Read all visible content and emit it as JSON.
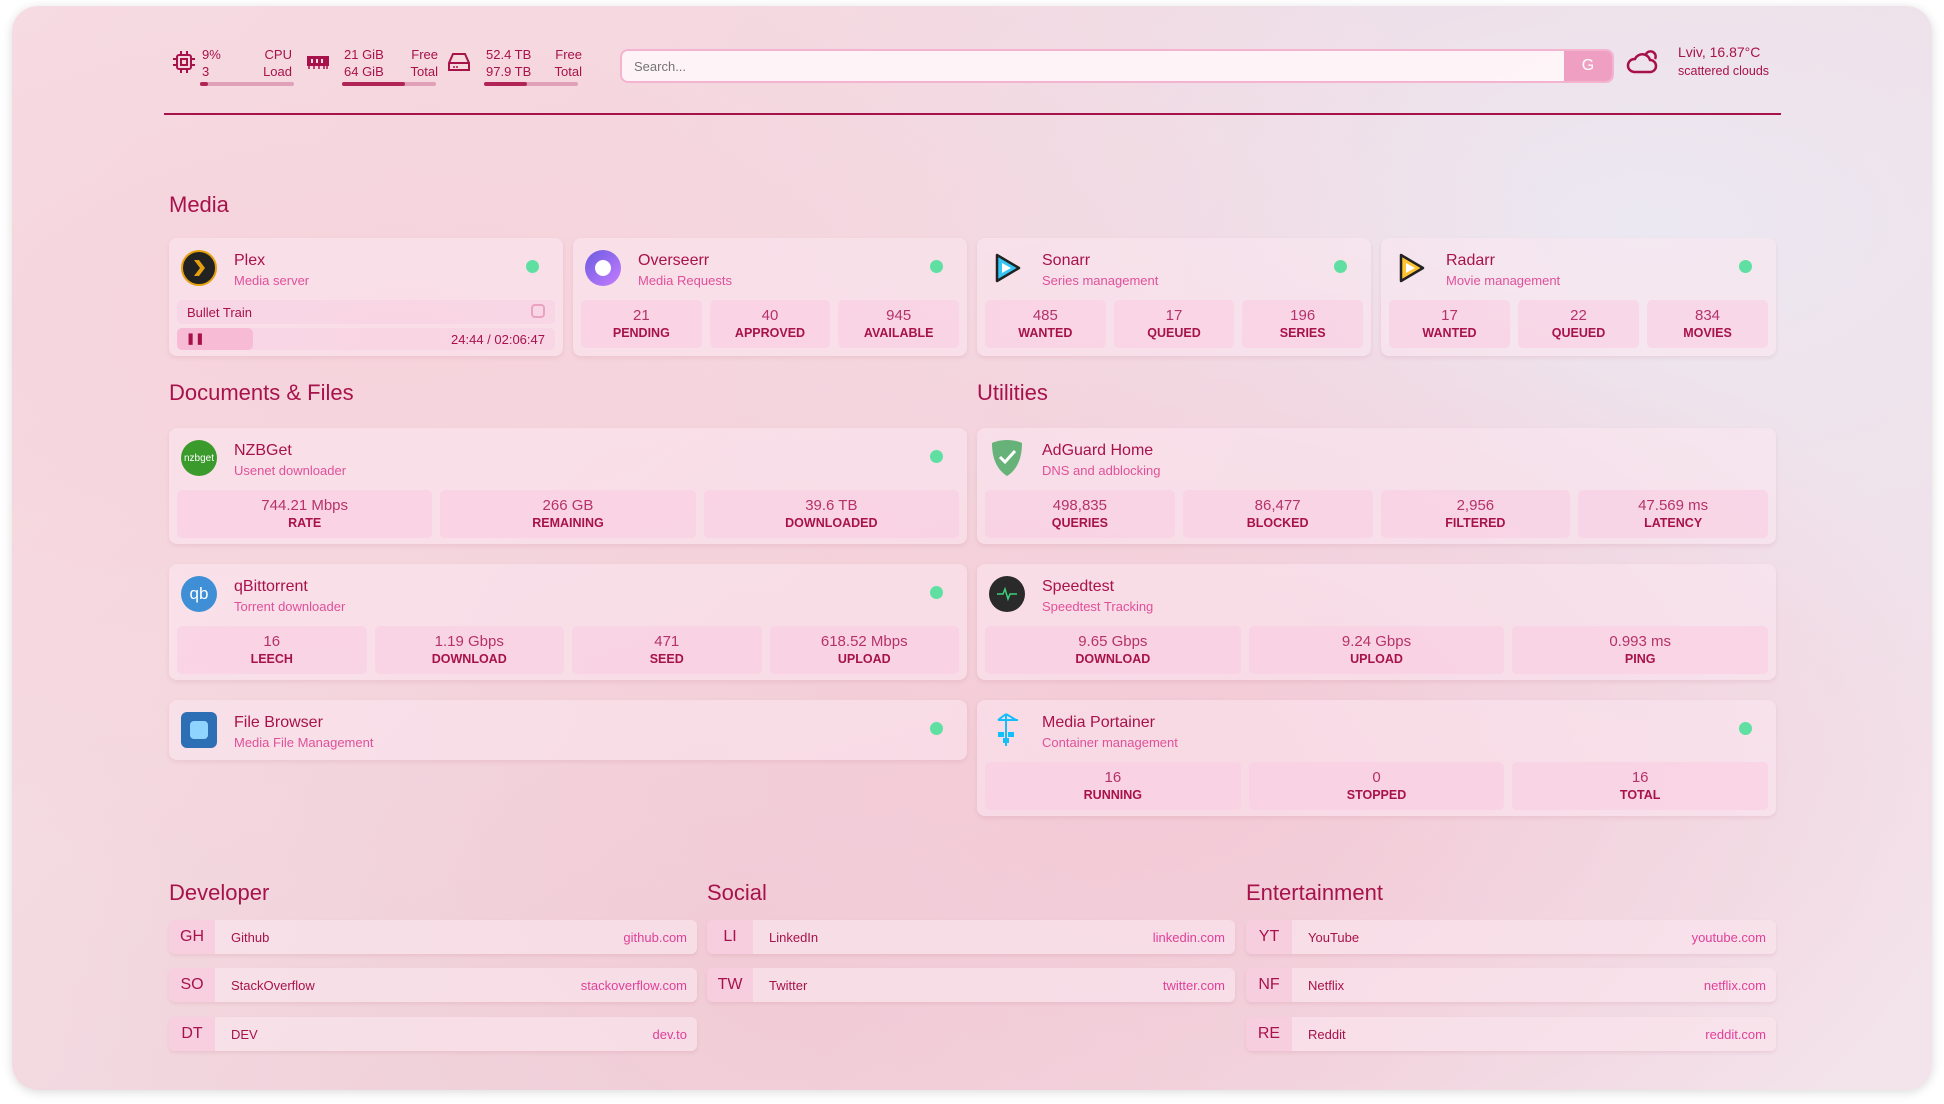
{
  "system": {
    "cpu": {
      "value": "9%",
      "cores": "3",
      "label1": "CPU",
      "label2": "Load",
      "percent": 9
    },
    "ram": {
      "free": "21 GiB",
      "total": "64 GiB",
      "label1": "Free",
      "label2": "Total",
      "used_percent": 67
    },
    "disk": {
      "free": "52.4 TB",
      "total": "97.9 TB",
      "label1": "Free",
      "label2": "Total",
      "used_percent": 46
    }
  },
  "search": {
    "placeholder": "Search...",
    "engine_button": "G"
  },
  "weather": {
    "location": "Lviv, 16.87°C",
    "description": "scattered clouds",
    "icon": "cloud-sun-icon"
  },
  "colors": {
    "accent": "#a8124a",
    "subtitle": "#e0509a",
    "status_online": "#5fe0a2",
    "stat_bg": "#facde2"
  },
  "media": {
    "heading": "Media",
    "cards": [
      {
        "title": "Plex",
        "subtitle": "Media server",
        "now_playing": "Bullet Train",
        "time": "24:44 / 02:06:47",
        "progress": 0.2
      },
      {
        "title": "Overseerr",
        "subtitle": "Media Requests",
        "stats": [
          {
            "v": "21",
            "l": "PENDING"
          },
          {
            "v": "40",
            "l": "APPROVED"
          },
          {
            "v": "945",
            "l": "AVAILABLE"
          }
        ]
      },
      {
        "title": "Sonarr",
        "subtitle": "Series management",
        "stats": [
          {
            "v": "485",
            "l": "WANTED"
          },
          {
            "v": "17",
            "l": "QUEUED"
          },
          {
            "v": "196",
            "l": "SERIES"
          }
        ]
      },
      {
        "title": "Radarr",
        "subtitle": "Movie management",
        "stats": [
          {
            "v": "17",
            "l": "WANTED"
          },
          {
            "v": "22",
            "l": "QUEUED"
          },
          {
            "v": "834",
            "l": "MOVIES"
          }
        ]
      }
    ]
  },
  "documents": {
    "heading": "Documents & Files",
    "cards": [
      {
        "title": "NZBGet",
        "subtitle": "Usenet downloader",
        "icon_text": "nzbget",
        "stats": [
          {
            "v": "744.21 Mbps",
            "l": "RATE"
          },
          {
            "v": "266 GB",
            "l": "REMAINING"
          },
          {
            "v": "39.6 TB",
            "l": "DOWNLOADED"
          }
        ]
      },
      {
        "title": "qBittorrent",
        "subtitle": "Torrent downloader",
        "icon_text": "qb",
        "stats": [
          {
            "v": "16",
            "l": "LEECH"
          },
          {
            "v": "1.19 Gbps",
            "l": "DOWNLOAD"
          },
          {
            "v": "471",
            "l": "SEED"
          },
          {
            "v": "618.52 Mbps",
            "l": "UPLOAD"
          }
        ]
      },
      {
        "title": "File Browser",
        "subtitle": "Media File Management"
      }
    ]
  },
  "utilities": {
    "heading": "Utilities",
    "cards": [
      {
        "title": "AdGuard Home",
        "subtitle": "DNS and adblocking",
        "stats": [
          {
            "v": "498,835",
            "l": "QUERIES"
          },
          {
            "v": "86,477",
            "l": "BLOCKED"
          },
          {
            "v": "2,956",
            "l": "FILTERED"
          },
          {
            "v": "47.569 ms",
            "l": "LATENCY"
          }
        ]
      },
      {
        "title": "Speedtest",
        "subtitle": "Speedtest Tracking",
        "stats": [
          {
            "v": "9.65 Gbps",
            "l": "DOWNLOAD"
          },
          {
            "v": "9.24 Gbps",
            "l": "UPLOAD"
          },
          {
            "v": "0.993 ms",
            "l": "PING"
          }
        ]
      },
      {
        "title": "Media Portainer",
        "subtitle": "Container management",
        "stats": [
          {
            "v": "16",
            "l": "RUNNING"
          },
          {
            "v": "0",
            "l": "STOPPED"
          },
          {
            "v": "16",
            "l": "TOTAL"
          }
        ]
      }
    ]
  },
  "bookmarks": [
    {
      "heading": "Developer",
      "items": [
        {
          "abbr": "GH",
          "name": "Github",
          "url": "github.com"
        },
        {
          "abbr": "SO",
          "name": "StackOverflow",
          "url": "stackoverflow.com"
        },
        {
          "abbr": "DT",
          "name": "DEV",
          "url": "dev.to"
        }
      ]
    },
    {
      "heading": "Social",
      "items": [
        {
          "abbr": "LI",
          "name": "LinkedIn",
          "url": "linkedin.com"
        },
        {
          "abbr": "TW",
          "name": "Twitter",
          "url": "twitter.com"
        }
      ]
    },
    {
      "heading": "Entertainment",
      "items": [
        {
          "abbr": "YT",
          "name": "YouTube",
          "url": "youtube.com"
        },
        {
          "abbr": "NF",
          "name": "Netflix",
          "url": "netflix.com"
        },
        {
          "abbr": "RE",
          "name": "Reddit",
          "url": "reddit.com"
        }
      ]
    }
  ]
}
